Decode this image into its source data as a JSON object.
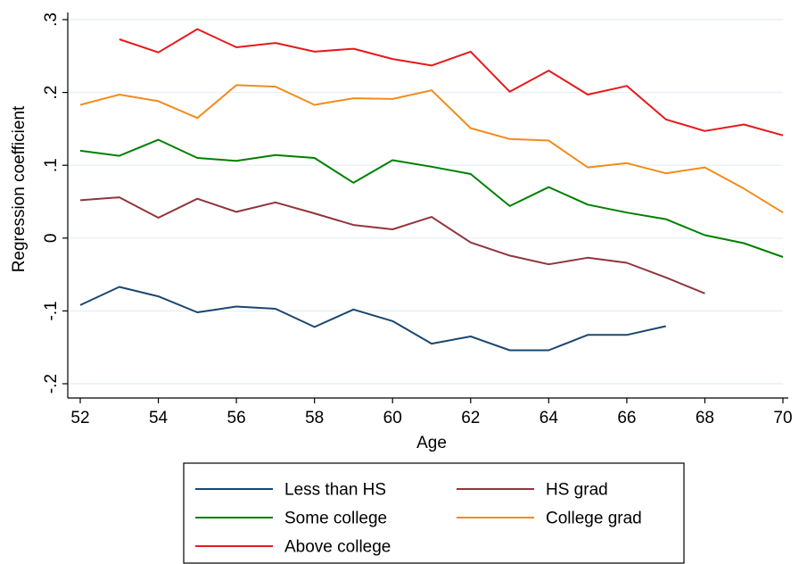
{
  "chart_data": {
    "type": "line",
    "xlabel": "Age",
    "ylabel": "Regression coefficient",
    "xlim": [
      52,
      70
    ],
    "ylim": [
      -0.2,
      0.3
    ],
    "x_ticks": [
      52,
      54,
      56,
      58,
      60,
      62,
      64,
      66,
      68,
      70
    ],
    "x_tick_labels": [
      "52",
      "54",
      "56",
      "58",
      "60",
      "62",
      "64",
      "66",
      "68",
      "70"
    ],
    "y_ticks": [
      -0.2,
      -0.1,
      0,
      0.1,
      0.2,
      0.3
    ],
    "y_tick_labels": [
      "-.2",
      "-.1",
      "0",
      ".1",
      ".2",
      ".3"
    ],
    "grid": "horizontal",
    "legend_position": "bottom",
    "series": [
      {
        "name": "Less than HS",
        "color": "#1a476f",
        "x": [
          52,
          53,
          54,
          55,
          56,
          57,
          58,
          59,
          60,
          61,
          62,
          63,
          64,
          65,
          66,
          67
        ],
        "values": [
          -0.092,
          -0.067,
          -0.08,
          -0.102,
          -0.094,
          -0.097,
          -0.122,
          -0.098,
          -0.114,
          -0.145,
          -0.135,
          -0.154,
          -0.154,
          -0.133,
          -0.133,
          -0.121
        ]
      },
      {
        "name": "HS grad",
        "color": "#90353b",
        "x": [
          52,
          53,
          54,
          55,
          56,
          57,
          58,
          59,
          60,
          61,
          62,
          63,
          64,
          65,
          66,
          67,
          68
        ],
        "values": [
          0.052,
          0.056,
          0.028,
          0.054,
          0.036,
          0.049,
          0.034,
          0.018,
          0.012,
          0.029,
          -0.006,
          -0.024,
          -0.036,
          -0.027,
          -0.034,
          -0.054,
          -0.076
        ]
      },
      {
        "name": "Some college",
        "color": "#008000",
        "x": [
          52,
          53,
          54,
          55,
          56,
          57,
          58,
          59,
          60,
          61,
          62,
          63,
          64,
          65,
          66,
          67,
          68,
          69,
          70
        ],
        "values": [
          0.12,
          0.113,
          0.135,
          0.11,
          0.106,
          0.114,
          0.11,
          0.076,
          0.107,
          0.098,
          0.088,
          0.044,
          0.07,
          0.046,
          0.035,
          0.026,
          0.004,
          -0.007,
          -0.026
        ]
      },
      {
        "name": "College grad",
        "color": "#f28c1c",
        "x": [
          52,
          53,
          54,
          55,
          56,
          57,
          58,
          59,
          60,
          61,
          62,
          63,
          64,
          65,
          66,
          67,
          68,
          69,
          70
        ],
        "values": [
          0.183,
          0.197,
          0.188,
          0.165,
          0.21,
          0.208,
          0.183,
          0.192,
          0.191,
          0.203,
          0.151,
          0.136,
          0.134,
          0.097,
          0.103,
          0.089,
          0.097,
          0.068,
          0.035
        ]
      },
      {
        "name": "Above college",
        "color": "#e8191b",
        "x": [
          53,
          54,
          55,
          56,
          57,
          58,
          59,
          60,
          61,
          62,
          63,
          64,
          65,
          66,
          67,
          68,
          69,
          70
        ],
        "values": [
          0.273,
          0.255,
          0.287,
          0.262,
          0.268,
          0.256,
          0.26,
          0.246,
          0.237,
          0.256,
          0.201,
          0.23,
          0.197,
          0.209,
          0.163,
          0.147,
          0.156,
          0.141
        ]
      }
    ]
  }
}
